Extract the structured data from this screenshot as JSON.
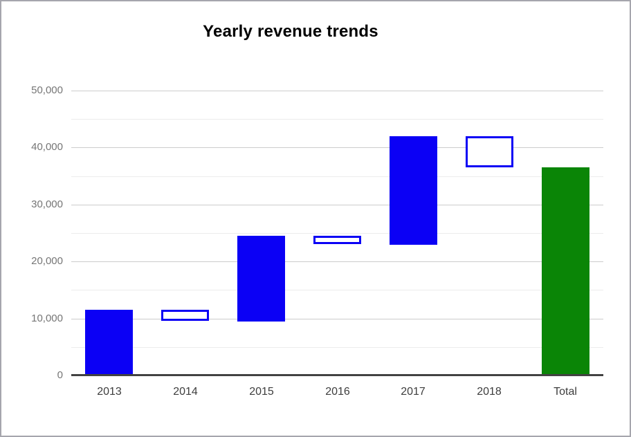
{
  "frame": {
    "border_color": "#a6a6ad",
    "background": "#ffffff"
  },
  "chart_data": {
    "type": "waterfall",
    "title": "Yearly revenue trends",
    "categories": [
      "2013",
      "2014",
      "2015",
      "2016",
      "2017",
      "2018",
      "Total"
    ],
    "series": [
      {
        "label": "2013",
        "start": 0,
        "end": 11500,
        "kind": "increase"
      },
      {
        "label": "2014",
        "start": 11500,
        "end": 9500,
        "kind": "decrease"
      },
      {
        "label": "2015",
        "start": 9500,
        "end": 24500,
        "kind": "increase"
      },
      {
        "label": "2016",
        "start": 24500,
        "end": 23000,
        "kind": "decrease"
      },
      {
        "label": "2017",
        "start": 23000,
        "end": 42000,
        "kind": "increase"
      },
      {
        "label": "2018",
        "start": 42000,
        "end": 36500,
        "kind": "decrease"
      },
      {
        "label": "Total",
        "start": 0,
        "end": 36500,
        "kind": "total"
      }
    ],
    "y_axis": {
      "min": 0,
      "max": 50000,
      "major_step": 10000,
      "minor_step": 5000,
      "tick_labels": [
        "0",
        "10,000",
        "20,000",
        "30,000",
        "40,000",
        "50,000"
      ],
      "label_color": "#757575"
    },
    "x_axis": {
      "label_color": "#3d3d3d"
    },
    "colors": {
      "increase_fill": "#0b00f5",
      "decrease_fill": "#ffffff",
      "decrease_border": "#0b00f5",
      "total_fill": "#0a8506",
      "major_gridline": "#cccccc",
      "minor_gridline": "#ececec",
      "axis_line": "#424242",
      "title": "#000000"
    },
    "legend": "none",
    "gridlines": true
  }
}
